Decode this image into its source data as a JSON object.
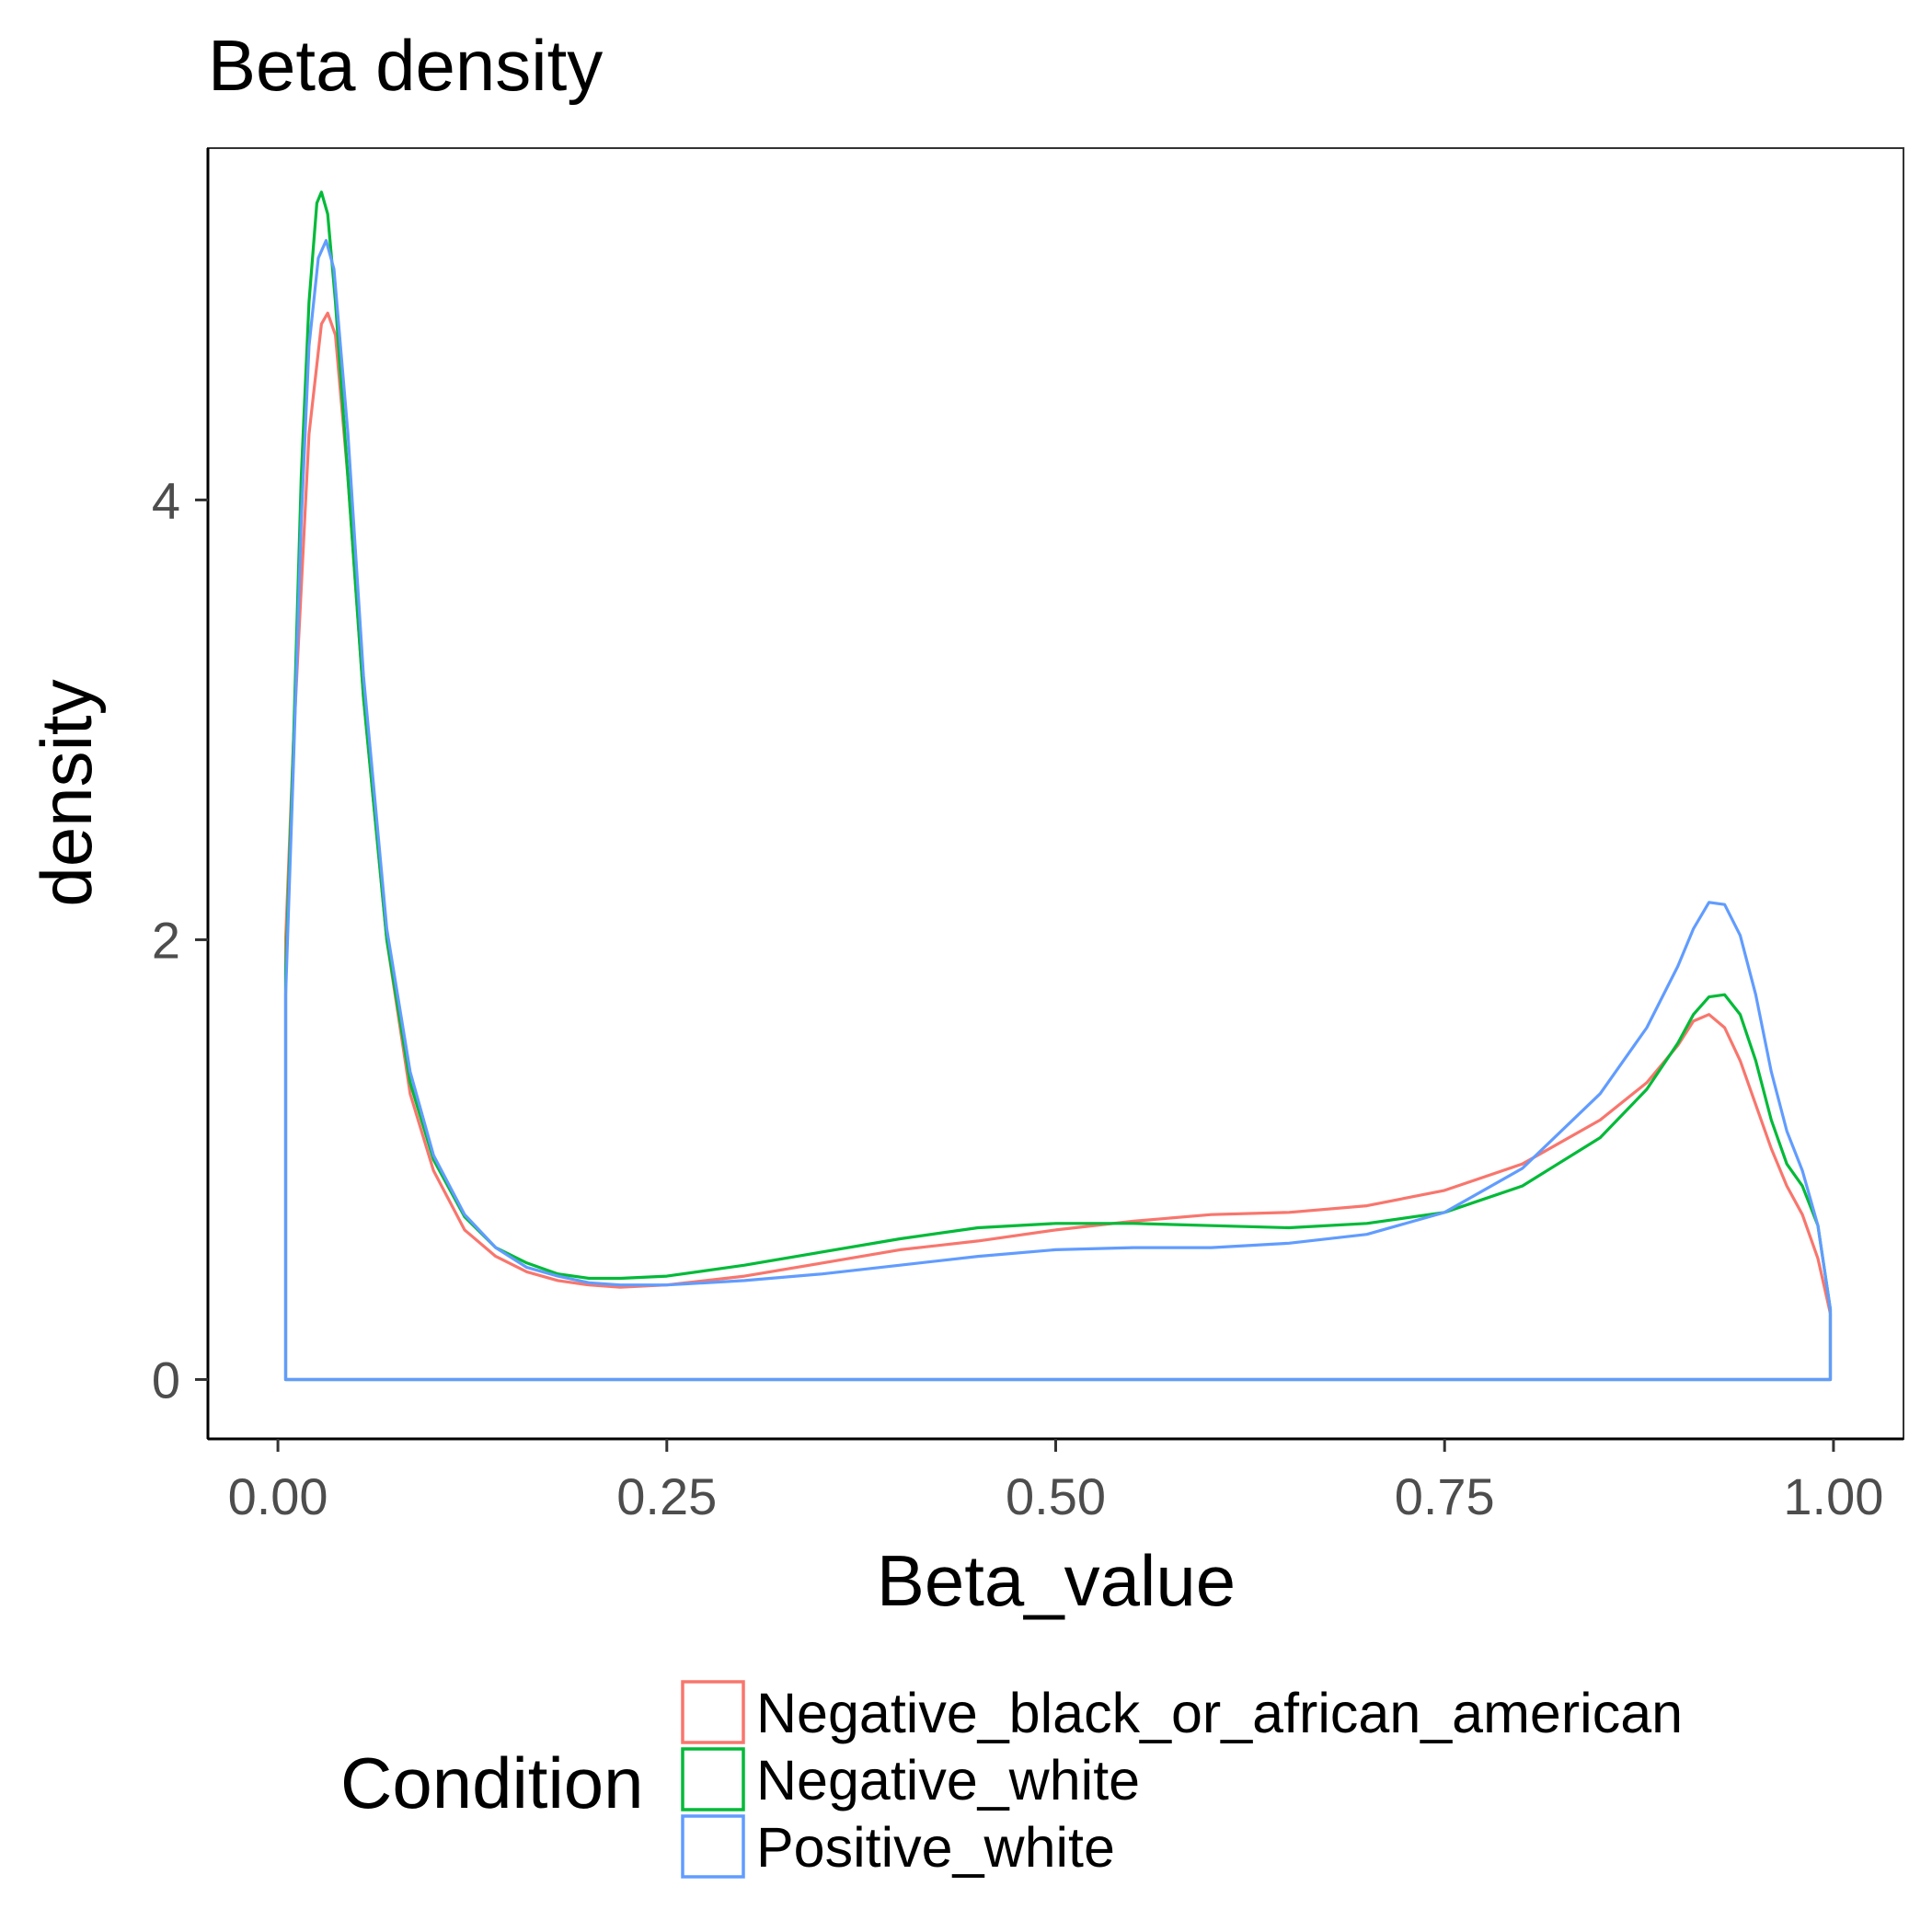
{
  "chart_data": {
    "type": "area",
    "title": "Beta density",
    "xlabel": "Beta_value",
    "ylabel": "density",
    "xlim": [
      -0.045,
      1.045
    ],
    "ylim": [
      -0.27,
      5.6
    ],
    "x_ticks": [
      {
        "value": 0.0,
        "label": "0.00"
      },
      {
        "value": 0.25,
        "label": "0.25"
      },
      {
        "value": 0.5,
        "label": "0.50"
      },
      {
        "value": 0.75,
        "label": "0.75"
      },
      {
        "value": 1.0,
        "label": "1.00"
      }
    ],
    "y_ticks": [
      {
        "value": 0,
        "label": "0"
      },
      {
        "value": 2,
        "label": "2"
      },
      {
        "value": 4,
        "label": "4"
      }
    ],
    "grid": false,
    "legend": {
      "title": "Condition",
      "placement": "bottom"
    },
    "series": [
      {
        "name": "Negative_black_or_african_american",
        "color": "#F8766D",
        "points": [
          [
            0.005,
            2.0
          ],
          [
            0.01,
            2.9
          ],
          [
            0.02,
            4.3
          ],
          [
            0.028,
            4.8
          ],
          [
            0.032,
            4.85
          ],
          [
            0.037,
            4.75
          ],
          [
            0.045,
            4.1
          ],
          [
            0.055,
            3.1
          ],
          [
            0.07,
            2.0
          ],
          [
            0.085,
            1.3
          ],
          [
            0.1,
            0.95
          ],
          [
            0.12,
            0.68
          ],
          [
            0.14,
            0.56
          ],
          [
            0.16,
            0.49
          ],
          [
            0.18,
            0.45
          ],
          [
            0.2,
            0.43
          ],
          [
            0.22,
            0.42
          ],
          [
            0.25,
            0.43
          ],
          [
            0.3,
            0.47
          ],
          [
            0.35,
            0.53
          ],
          [
            0.4,
            0.59
          ],
          [
            0.45,
            0.63
          ],
          [
            0.5,
            0.68
          ],
          [
            0.55,
            0.72
          ],
          [
            0.6,
            0.75
          ],
          [
            0.65,
            0.76
          ],
          [
            0.7,
            0.79
          ],
          [
            0.75,
            0.86
          ],
          [
            0.8,
            0.98
          ],
          [
            0.85,
            1.18
          ],
          [
            0.88,
            1.35
          ],
          [
            0.9,
            1.52
          ],
          [
            0.91,
            1.63
          ],
          [
            0.92,
            1.66
          ],
          [
            0.93,
            1.6
          ],
          [
            0.94,
            1.45
          ],
          [
            0.95,
            1.25
          ],
          [
            0.96,
            1.05
          ],
          [
            0.97,
            0.88
          ],
          [
            0.98,
            0.75
          ],
          [
            0.99,
            0.55
          ],
          [
            0.998,
            0.3
          ]
        ]
      },
      {
        "name": "Negative_white",
        "color": "#00BA38",
        "points": [
          [
            0.005,
            1.85
          ],
          [
            0.01,
            2.9
          ],
          [
            0.015,
            4.1
          ],
          [
            0.02,
            4.9
          ],
          [
            0.025,
            5.35
          ],
          [
            0.028,
            5.4
          ],
          [
            0.032,
            5.3
          ],
          [
            0.037,
            4.9
          ],
          [
            0.045,
            4.1
          ],
          [
            0.055,
            3.1
          ],
          [
            0.07,
            2.0
          ],
          [
            0.085,
            1.35
          ],
          [
            0.1,
            1.0
          ],
          [
            0.12,
            0.74
          ],
          [
            0.14,
            0.6
          ],
          [
            0.16,
            0.53
          ],
          [
            0.18,
            0.48
          ],
          [
            0.2,
            0.46
          ],
          [
            0.22,
            0.46
          ],
          [
            0.25,
            0.47
          ],
          [
            0.3,
            0.52
          ],
          [
            0.35,
            0.58
          ],
          [
            0.4,
            0.64
          ],
          [
            0.45,
            0.69
          ],
          [
            0.5,
            0.71
          ],
          [
            0.55,
            0.71
          ],
          [
            0.6,
            0.7
          ],
          [
            0.65,
            0.69
          ],
          [
            0.7,
            0.71
          ],
          [
            0.75,
            0.76
          ],
          [
            0.8,
            0.88
          ],
          [
            0.85,
            1.1
          ],
          [
            0.88,
            1.32
          ],
          [
            0.9,
            1.53
          ],
          [
            0.91,
            1.66
          ],
          [
            0.92,
            1.74
          ],
          [
            0.93,
            1.75
          ],
          [
            0.94,
            1.66
          ],
          [
            0.95,
            1.45
          ],
          [
            0.96,
            1.18
          ],
          [
            0.97,
            0.98
          ],
          [
            0.98,
            0.88
          ],
          [
            0.99,
            0.7
          ],
          [
            0.998,
            0.32
          ]
        ]
      },
      {
        "name": "Positive_white",
        "color": "#619CFF",
        "points": [
          [
            0.005,
            1.75
          ],
          [
            0.01,
            2.8
          ],
          [
            0.015,
            3.9
          ],
          [
            0.02,
            4.7
          ],
          [
            0.026,
            5.1
          ],
          [
            0.031,
            5.18
          ],
          [
            0.036,
            5.05
          ],
          [
            0.045,
            4.3
          ],
          [
            0.055,
            3.2
          ],
          [
            0.07,
            2.05
          ],
          [
            0.085,
            1.4
          ],
          [
            0.1,
            1.02
          ],
          [
            0.12,
            0.75
          ],
          [
            0.14,
            0.6
          ],
          [
            0.16,
            0.51
          ],
          [
            0.18,
            0.47
          ],
          [
            0.2,
            0.44
          ],
          [
            0.22,
            0.43
          ],
          [
            0.25,
            0.43
          ],
          [
            0.3,
            0.45
          ],
          [
            0.35,
            0.48
          ],
          [
            0.4,
            0.52
          ],
          [
            0.45,
            0.56
          ],
          [
            0.5,
            0.59
          ],
          [
            0.55,
            0.6
          ],
          [
            0.6,
            0.6
          ],
          [
            0.65,
            0.62
          ],
          [
            0.7,
            0.66
          ],
          [
            0.75,
            0.76
          ],
          [
            0.8,
            0.96
          ],
          [
            0.85,
            1.3
          ],
          [
            0.88,
            1.6
          ],
          [
            0.9,
            1.88
          ],
          [
            0.91,
            2.05
          ],
          [
            0.92,
            2.17
          ],
          [
            0.93,
            2.16
          ],
          [
            0.94,
            2.02
          ],
          [
            0.95,
            1.75
          ],
          [
            0.96,
            1.4
          ],
          [
            0.97,
            1.13
          ],
          [
            0.98,
            0.95
          ],
          [
            0.99,
            0.7
          ],
          [
            0.998,
            0.32
          ]
        ]
      }
    ]
  }
}
